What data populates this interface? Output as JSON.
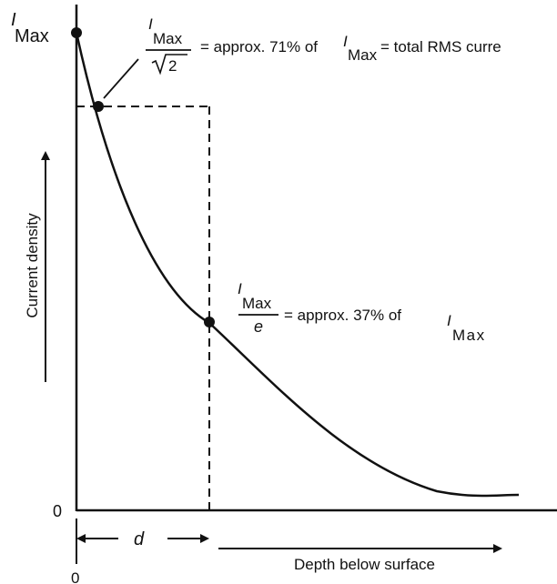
{
  "labels": {
    "imax_symbol_i": "I",
    "imax_symbol_sub": "Max",
    "zero_y": "0",
    "zero_x": "0",
    "y_axis": "Current density",
    "x_axis": "Depth below surface",
    "d": "d",
    "rms_num_i": "I",
    "rms_num_sub": "Max",
    "rms_den": "2",
    "rms_text_1": "= approx. 71% of",
    "rms_text_i": "I",
    "rms_text_sub": "Max",
    "rms_text_2": "= total RMS curre",
    "e_num_i": "I",
    "e_num_sub": "Max",
    "e_den": "e",
    "e_text": "= approx. 37% of",
    "e_text_i": "I",
    "e_text_sub": "Max"
  },
  "curve": {
    "type": "exponential-decay",
    "points": [
      {
        "name": "Imax",
        "value_fraction": 1.0
      },
      {
        "name": "Imax/sqrt2",
        "value_fraction": 0.71
      },
      {
        "name": "Imax/e",
        "value_fraction": 0.37
      }
    ]
  },
  "colors": {
    "ink": "#111111",
    "background": "#ffffff"
  }
}
